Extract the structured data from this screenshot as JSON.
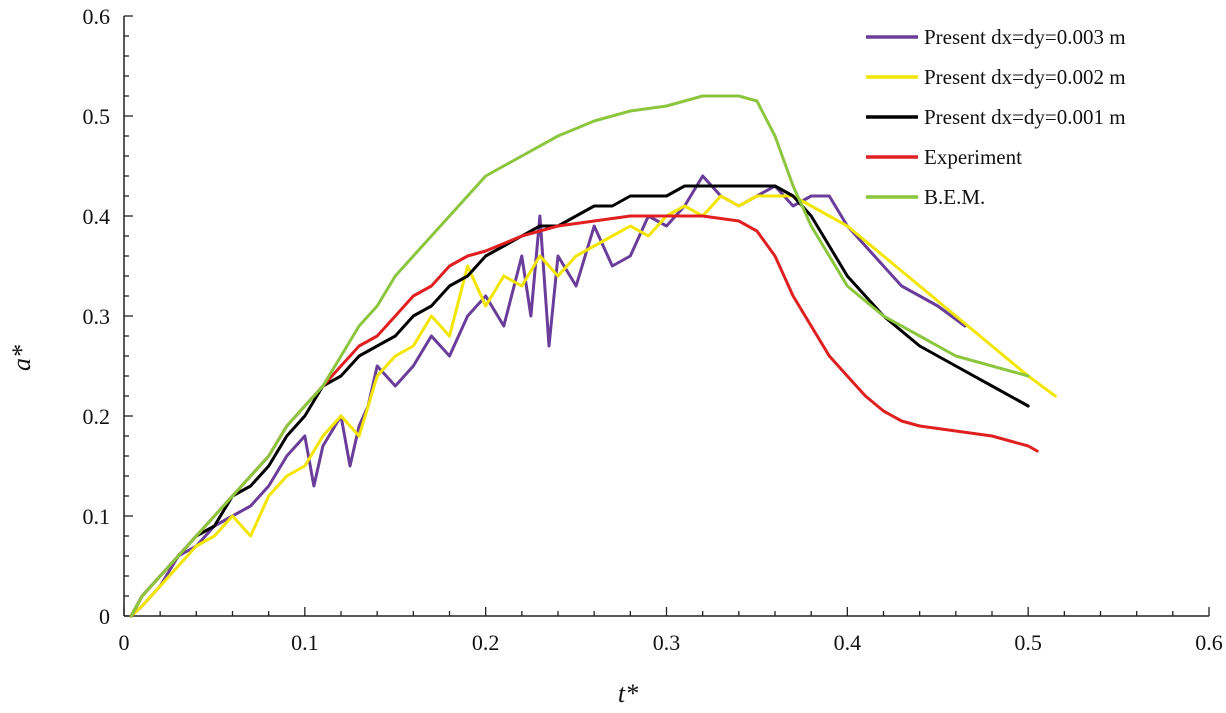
{
  "chart_data": {
    "type": "line",
    "title": "",
    "xlabel": "t*",
    "ylabel": "a*",
    "xlim": [
      0,
      0.6
    ],
    "ylim": [
      0,
      0.6
    ],
    "xticks": [
      "0",
      "0.1",
      "0.2",
      "0.3",
      "0.4",
      "0.5",
      "0.6"
    ],
    "yticks": [
      "0",
      "0.1",
      "0.2",
      "0.3",
      "0.4",
      "0.5",
      "0.6"
    ],
    "grid": false,
    "legend_position": "top-right",
    "series": [
      {
        "name": "Present dx=dy=0.003 m",
        "color": "#6a3d9a",
        "x": [
          0.004,
          0.01,
          0.02,
          0.03,
          0.04,
          0.05,
          0.06,
          0.07,
          0.08,
          0.09,
          0.1,
          0.105,
          0.11,
          0.12,
          0.125,
          0.13,
          0.135,
          0.14,
          0.15,
          0.16,
          0.17,
          0.18,
          0.19,
          0.2,
          0.21,
          0.22,
          0.225,
          0.23,
          0.235,
          0.24,
          0.25,
          0.26,
          0.27,
          0.28,
          0.29,
          0.3,
          0.31,
          0.32,
          0.33,
          0.34,
          0.35,
          0.36,
          0.37,
          0.38,
          0.39,
          0.4,
          0.41,
          0.42,
          0.43,
          0.44,
          0.45,
          0.465
        ],
        "y": [
          0.0,
          0.01,
          0.03,
          0.06,
          0.07,
          0.09,
          0.1,
          0.11,
          0.13,
          0.16,
          0.18,
          0.13,
          0.17,
          0.2,
          0.15,
          0.19,
          0.21,
          0.25,
          0.23,
          0.25,
          0.28,
          0.26,
          0.3,
          0.32,
          0.29,
          0.36,
          0.3,
          0.4,
          0.27,
          0.36,
          0.33,
          0.39,
          0.35,
          0.36,
          0.4,
          0.39,
          0.41,
          0.44,
          0.42,
          0.41,
          0.42,
          0.43,
          0.41,
          0.42,
          0.42,
          0.39,
          0.37,
          0.35,
          0.33,
          0.32,
          0.31,
          0.29
        ]
      },
      {
        "name": "Present dx=dy=0.002 m",
        "color": "#f2e600",
        "x": [
          0.004,
          0.01,
          0.02,
          0.03,
          0.04,
          0.05,
          0.06,
          0.07,
          0.08,
          0.09,
          0.1,
          0.11,
          0.12,
          0.13,
          0.14,
          0.15,
          0.16,
          0.17,
          0.18,
          0.19,
          0.2,
          0.21,
          0.22,
          0.23,
          0.24,
          0.25,
          0.26,
          0.27,
          0.28,
          0.29,
          0.3,
          0.31,
          0.32,
          0.33,
          0.34,
          0.35,
          0.36,
          0.37,
          0.38,
          0.39,
          0.4,
          0.42,
          0.44,
          0.46,
          0.48,
          0.5,
          0.515
        ],
        "y": [
          0.0,
          0.01,
          0.03,
          0.05,
          0.07,
          0.08,
          0.1,
          0.08,
          0.12,
          0.14,
          0.15,
          0.18,
          0.2,
          0.18,
          0.24,
          0.26,
          0.27,
          0.3,
          0.28,
          0.35,
          0.31,
          0.34,
          0.33,
          0.36,
          0.34,
          0.36,
          0.37,
          0.38,
          0.39,
          0.38,
          0.4,
          0.41,
          0.4,
          0.42,
          0.41,
          0.42,
          0.42,
          0.42,
          0.41,
          0.4,
          0.39,
          0.36,
          0.33,
          0.3,
          0.27,
          0.24,
          0.22
        ]
      },
      {
        "name": "Present dx=dy=0.001 m",
        "color": "#000000",
        "x": [
          0.004,
          0.01,
          0.02,
          0.03,
          0.04,
          0.05,
          0.06,
          0.07,
          0.08,
          0.09,
          0.1,
          0.11,
          0.12,
          0.13,
          0.14,
          0.15,
          0.16,
          0.17,
          0.18,
          0.19,
          0.2,
          0.21,
          0.22,
          0.23,
          0.24,
          0.25,
          0.26,
          0.27,
          0.28,
          0.29,
          0.3,
          0.31,
          0.32,
          0.33,
          0.34,
          0.35,
          0.36,
          0.37,
          0.38,
          0.39,
          0.4,
          0.42,
          0.44,
          0.46,
          0.48,
          0.5
        ],
        "y": [
          0.0,
          0.02,
          0.04,
          0.06,
          0.08,
          0.09,
          0.12,
          0.13,
          0.15,
          0.18,
          0.2,
          0.23,
          0.24,
          0.26,
          0.27,
          0.28,
          0.3,
          0.31,
          0.33,
          0.34,
          0.36,
          0.37,
          0.38,
          0.39,
          0.39,
          0.4,
          0.41,
          0.41,
          0.42,
          0.42,
          0.42,
          0.43,
          0.43,
          0.43,
          0.43,
          0.43,
          0.43,
          0.42,
          0.4,
          0.37,
          0.34,
          0.3,
          0.27,
          0.25,
          0.23,
          0.21
        ]
      },
      {
        "name": "Experiment",
        "color": "#e02020",
        "x": [
          0.004,
          0.01,
          0.02,
          0.03,
          0.04,
          0.05,
          0.06,
          0.07,
          0.08,
          0.09,
          0.1,
          0.11,
          0.12,
          0.13,
          0.14,
          0.15,
          0.16,
          0.17,
          0.18,
          0.19,
          0.2,
          0.22,
          0.24,
          0.26,
          0.28,
          0.3,
          0.32,
          0.34,
          0.35,
          0.36,
          0.37,
          0.38,
          0.39,
          0.4,
          0.41,
          0.42,
          0.43,
          0.44,
          0.46,
          0.48,
          0.49,
          0.5,
          0.505
        ],
        "y": [
          0.0,
          0.02,
          0.04,
          0.06,
          0.08,
          0.1,
          0.12,
          0.14,
          0.16,
          0.19,
          0.21,
          0.23,
          0.25,
          0.27,
          0.28,
          0.3,
          0.32,
          0.33,
          0.35,
          0.36,
          0.365,
          0.38,
          0.39,
          0.395,
          0.4,
          0.4,
          0.4,
          0.395,
          0.385,
          0.36,
          0.32,
          0.29,
          0.26,
          0.24,
          0.22,
          0.205,
          0.195,
          0.19,
          0.185,
          0.18,
          0.175,
          0.17,
          0.165
        ]
      },
      {
        "name": "B.E.M.",
        "color": "#8cc63f",
        "x": [
          0.004,
          0.01,
          0.02,
          0.03,
          0.04,
          0.05,
          0.06,
          0.07,
          0.08,
          0.09,
          0.1,
          0.11,
          0.12,
          0.13,
          0.14,
          0.15,
          0.16,
          0.17,
          0.18,
          0.19,
          0.2,
          0.22,
          0.24,
          0.26,
          0.28,
          0.3,
          0.31,
          0.32,
          0.33,
          0.34,
          0.35,
          0.36,
          0.37,
          0.38,
          0.39,
          0.4,
          0.42,
          0.44,
          0.46,
          0.48,
          0.5
        ],
        "y": [
          0.0,
          0.02,
          0.04,
          0.06,
          0.08,
          0.1,
          0.12,
          0.14,
          0.16,
          0.19,
          0.21,
          0.23,
          0.26,
          0.29,
          0.31,
          0.34,
          0.36,
          0.38,
          0.4,
          0.42,
          0.44,
          0.46,
          0.48,
          0.495,
          0.505,
          0.51,
          0.515,
          0.52,
          0.52,
          0.52,
          0.515,
          0.48,
          0.43,
          0.39,
          0.36,
          0.33,
          0.3,
          0.28,
          0.26,
          0.25,
          0.24
        ]
      }
    ]
  }
}
